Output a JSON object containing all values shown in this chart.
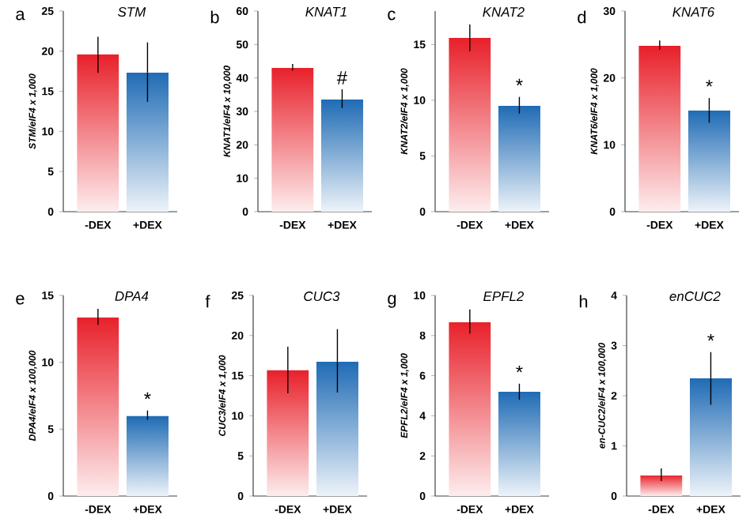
{
  "chart_data": [
    {
      "type": "bar",
      "title": "STM",
      "ylabel": "STM/eIF4 x 1,000",
      "categories": [
        "-DEX",
        "+DEX"
      ],
      "values": [
        19.6,
        17.4
      ],
      "errors": [
        [
          17.3,
          21.8
        ],
        [
          13.7,
          21.1
        ]
      ],
      "colors": [
        "#e8202a",
        "#1f6bb5"
      ],
      "ylim": [
        0,
        25
      ],
      "yticks": [
        0,
        5,
        10,
        15,
        20,
        25
      ],
      "annotations": [
        "a"
      ]
    },
    {
      "type": "bar",
      "title": "KNAT1",
      "ylabel": "KNAT1/eIF4 x 10,000",
      "categories": [
        "-DEX",
        "+DEX"
      ],
      "values": [
        43.2,
        33.6
      ],
      "errors": [
        [
          42.2,
          44.2
        ],
        [
          31,
          36.6
        ]
      ],
      "colors": [
        "#e8202a",
        "#1f6bb5"
      ],
      "ylim": [
        0,
        60
      ],
      "yticks": [
        0,
        10,
        20,
        30,
        40,
        50,
        60
      ],
      "annotations": [
        "b",
        "#"
      ]
    },
    {
      "type": "bar",
      "title": "KNAT2",
      "ylabel": "KNAT2/eIF4 x 1,000",
      "categories": [
        "-DEX",
        "+DEX"
      ],
      "values": [
        15.6,
        9.5
      ],
      "errors": [
        [
          14.4,
          16.8
        ],
        [
          8.8,
          10.3
        ]
      ],
      "colors": [
        "#e8202a",
        "#1f6bb5"
      ],
      "ylim": [
        0,
        18
      ],
      "yticks": [
        0,
        5,
        10,
        15
      ],
      "annotations": [
        "c",
        "*"
      ]
    },
    {
      "type": "bar",
      "title": "KNAT6",
      "ylabel": "KNAT6/eIF4 x 1,000",
      "categories": [
        "-DEX",
        "+DEX"
      ],
      "values": [
        24.8,
        15.2
      ],
      "errors": [
        [
          24.2,
          25.6
        ],
        [
          13.3,
          17
        ]
      ],
      "colors": [
        "#e8202a",
        "#1f6bb5"
      ],
      "ylim": [
        0,
        30
      ],
      "yticks": [
        0,
        10,
        20,
        30
      ],
      "annotations": [
        "d",
        "*"
      ]
    },
    {
      "type": "bar",
      "title": "DPA4",
      "ylabel": "DPA4/eIF4 x 100,000",
      "categories": [
        "-DEX",
        "+DEX"
      ],
      "values": [
        13.4,
        6.0
      ],
      "errors": [
        [
          12.8,
          14
        ],
        [
          5.7,
          6.4
        ]
      ],
      "colors": [
        "#e8202a",
        "#1f6bb5"
      ],
      "ylim": [
        0,
        15
      ],
      "yticks": [
        0,
        5,
        10,
        15
      ],
      "annotations": [
        "e",
        "*"
      ]
    },
    {
      "type": "bar",
      "title": "CUC3",
      "ylabel": "CUC3/eIF4 x 1,000",
      "categories": [
        "-DEX",
        "+DEX"
      ],
      "values": [
        15.7,
        16.8
      ],
      "errors": [
        [
          12.8,
          18.6
        ],
        [
          12.9,
          20.8
        ]
      ],
      "colors": [
        "#e8202a",
        "#1f6bb5"
      ],
      "ylim": [
        0,
        25
      ],
      "yticks": [
        0,
        5,
        10,
        15,
        20,
        25
      ],
      "annotations": [
        "f"
      ]
    },
    {
      "type": "bar",
      "title": "EPFL2",
      "ylabel": "EPFL2/eIF4 x 1,000",
      "categories": [
        "-DEX",
        "+DEX"
      ],
      "values": [
        8.7,
        5.2
      ],
      "errors": [
        [
          8.1,
          9.3
        ],
        [
          4.8,
          5.6
        ]
      ],
      "colors": [
        "#e8202a",
        "#1f6bb5"
      ],
      "ylim": [
        0,
        10
      ],
      "yticks": [
        0,
        2,
        4,
        6,
        8,
        10
      ],
      "annotations": [
        "g",
        "*"
      ]
    },
    {
      "type": "bar",
      "title": "enCUC2",
      "ylabel": "en-CUC2/eIF4 x 100,000",
      "categories": [
        "-DEX",
        "+DEX"
      ],
      "values": [
        0.42,
        2.35
      ],
      "errors": [
        [
          0.3,
          0.55
        ],
        [
          1.82,
          2.87
        ]
      ],
      "colors": [
        "#e8202a",
        "#1f6bb5"
      ],
      "ylim": [
        0,
        4
      ],
      "yticks": [
        0,
        1,
        2,
        3,
        4
      ],
      "annotations": [
        "h",
        "*"
      ]
    }
  ]
}
